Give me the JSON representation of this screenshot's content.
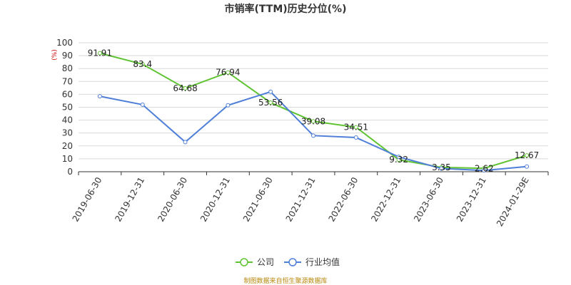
{
  "chart_data": {
    "type": "line",
    "title": "市销率(TTM)历史分位(%)",
    "unit_label": "(%)",
    "categories": [
      "2019-06-30",
      "2019-12-31",
      "2020-06-30",
      "2020-12-31",
      "2021-06-30",
      "2021-12-31",
      "2022-06-30",
      "2022-12-31",
      "2023-06-30",
      "2023-12-31",
      "2024-01-29E"
    ],
    "ylim": [
      0,
      100
    ],
    "yticks": [
      0,
      10,
      20,
      30,
      40,
      50,
      60,
      70,
      80,
      90,
      100
    ],
    "grid": true,
    "legend_position": "bottom",
    "series": [
      {
        "name": "公司",
        "color": "#5fc332",
        "values": [
          91.91,
          83.4,
          64.68,
          76.94,
          53.56,
          39.08,
          34.51,
          9.32,
          3.35,
          2.62,
          12.67
        ],
        "labels": [
          "91.91",
          "83.4",
          "64.68",
          "76.94",
          "53.56",
          "39.08",
          "34.51",
          "9.32",
          "3.35",
          "2.62",
          "12.67"
        ]
      },
      {
        "name": "行业均值",
        "color": "#4f7fd8",
        "values": [
          58.5,
          52,
          23,
          51.5,
          62,
          28,
          26.5,
          11.5,
          2.5,
          1,
          4
        ]
      }
    ]
  },
  "source_text": "制图数据来自恒生聚源数据库"
}
